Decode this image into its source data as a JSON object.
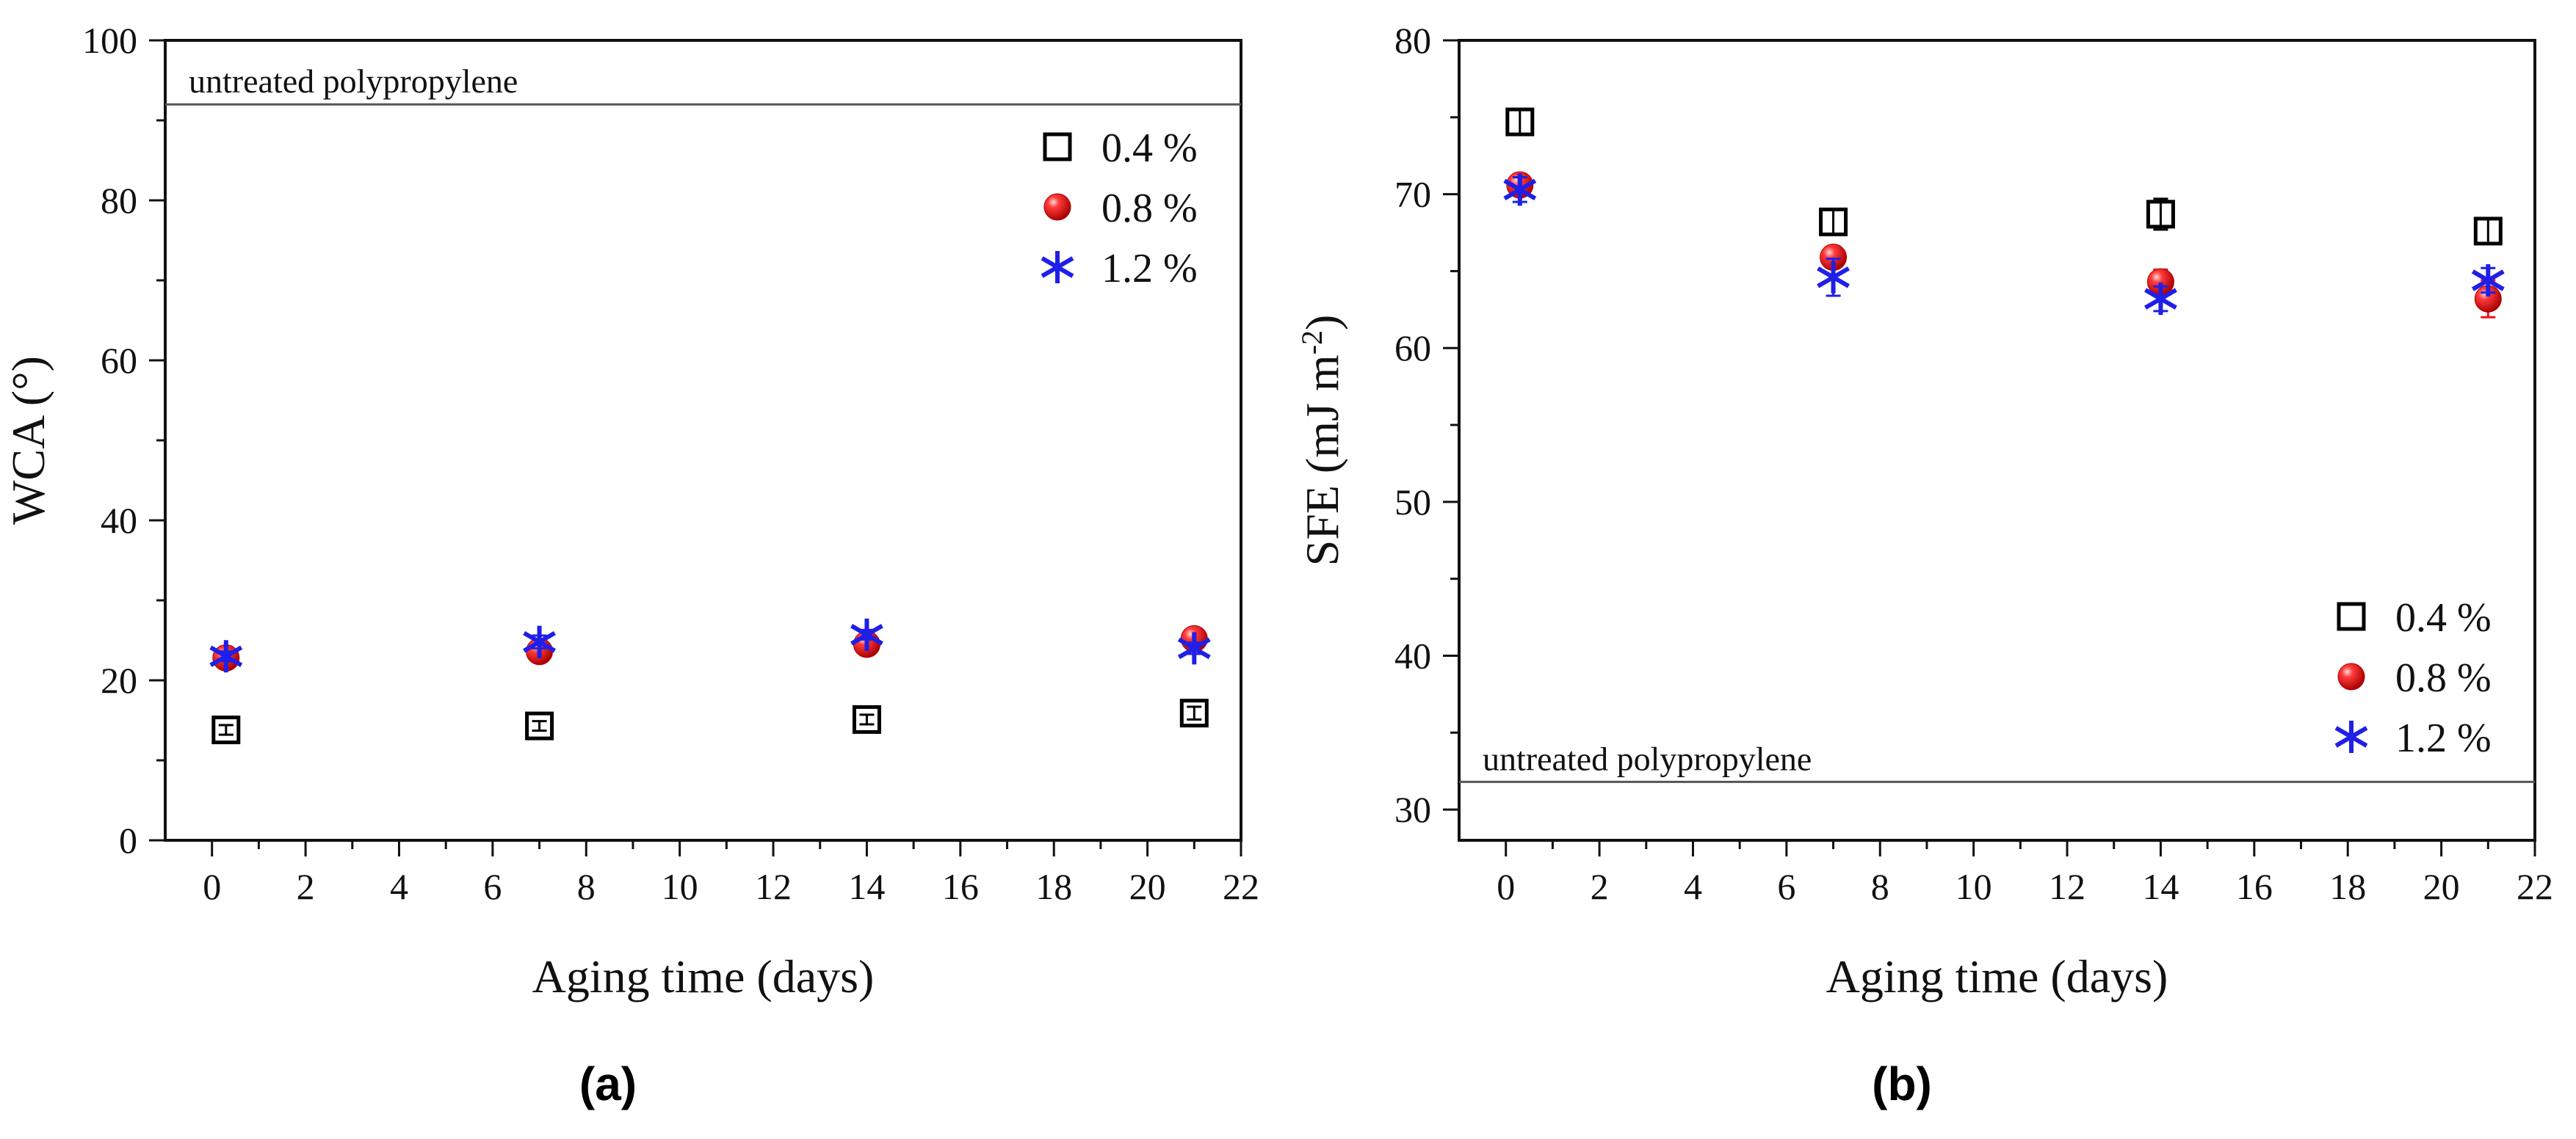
{
  "chart_data": [
    {
      "type": "scatter",
      "panel_label": "(a)",
      "xlabel": "Aging time (days)",
      "ylabel": "WCA (°)",
      "ylabel_sup": "",
      "xlim": [
        -1,
        22
      ],
      "ylim": [
        0,
        100
      ],
      "xticks": [
        0,
        2,
        4,
        6,
        8,
        10,
        12,
        14,
        16,
        18,
        20,
        22
      ],
      "yticks": [
        0,
        20,
        40,
        60,
        80,
        100
      ],
      "reference_line": {
        "y": 92,
        "label": "untreated polypropylene",
        "label_position": "above-left"
      },
      "legend_position": "top-right",
      "series": [
        {
          "name": "0.4 %",
          "marker": "square",
          "color": "#000000",
          "x": [
            0.3,
            7,
            14,
            21
          ],
          "y": [
            13.8,
            14.3,
            15.1,
            15.9
          ],
          "err": [
            0.6,
            0.6,
            0.6,
            0.8
          ]
        },
        {
          "name": "0.8 %",
          "marker": "sphere",
          "color": "#e8131b",
          "x": [
            0.3,
            7,
            14,
            21
          ],
          "y": [
            22.8,
            23.6,
            24.5,
            25.2
          ],
          "err": [
            0.5,
            0.5,
            0.6,
            0.6
          ]
        },
        {
          "name": "1.2 %",
          "marker": "asterisk",
          "color": "#1f1fe8",
          "x": [
            0.3,
            7,
            14,
            21
          ],
          "y": [
            23.0,
            24.8,
            25.7,
            24.0
          ],
          "err": [
            0.6,
            0.8,
            0.6,
            0.7
          ]
        }
      ]
    },
    {
      "type": "scatter",
      "panel_label": "(b)",
      "xlabel": "Aging time (days)",
      "ylabel": "SFE (mJ m",
      "ylabel_sup": "-2",
      "ylabel_end": ")",
      "xlim": [
        -1,
        22
      ],
      "ylim": [
        28,
        80
      ],
      "xticks": [
        0,
        2,
        4,
        6,
        8,
        10,
        12,
        14,
        16,
        18,
        20,
        22
      ],
      "yticks": [
        30,
        40,
        50,
        60,
        70,
        80
      ],
      "reference_line": {
        "y": 31.8,
        "label": "untreated polypropylene",
        "label_position": "above-left"
      },
      "legend_position": "bottom-right",
      "series": [
        {
          "name": "0.4 %",
          "marker": "square",
          "color": "#000000",
          "x": [
            0.3,
            7,
            14,
            21
          ],
          "y": [
            74.7,
            68.2,
            68.7,
            67.6
          ],
          "err": [
            0.8,
            0.8,
            1.0,
            0.8
          ]
        },
        {
          "name": "0.8 %",
          "marker": "sphere",
          "color": "#e8131b",
          "x": [
            0.3,
            7,
            14,
            21
          ],
          "y": [
            70.6,
            65.9,
            64.3,
            63.2
          ],
          "err": [
            0.6,
            0.6,
            0.8,
            1.2
          ]
        },
        {
          "name": "1.2 %",
          "marker": "asterisk",
          "color": "#1f1fe8",
          "x": [
            0.3,
            7,
            14,
            21
          ],
          "y": [
            70.3,
            64.6,
            63.2,
            64.4
          ],
          "err": [
            0.8,
            1.2,
            0.8,
            0.8
          ]
        }
      ]
    }
  ]
}
